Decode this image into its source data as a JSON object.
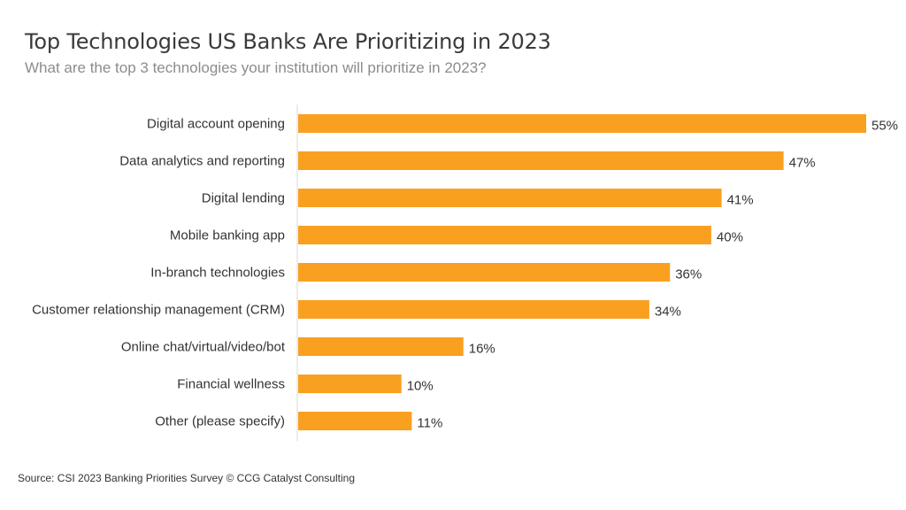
{
  "title": "Top Technologies US Banks Are Prioritizing in 2023",
  "subtitle": "What are the top 3 technologies your institution will prioritize in 2023?",
  "source": "Source: CSI 2023 Banking Priorities Survey © CCG Catalyst Consulting",
  "colors": {
    "bar": "#FAA021",
    "axis": "#D9D9D9"
  },
  "chart_data": {
    "type": "bar",
    "orientation": "horizontal",
    "categories": [
      "Digital account opening",
      "Data analytics and reporting",
      "Digital lending",
      "Mobile banking app",
      "In-branch technologies",
      "Customer relationship management (CRM)",
      "Online chat/virtual/video/bot",
      "Financial wellness",
      "Other (please specify)"
    ],
    "values": [
      55,
      47,
      41,
      40,
      36,
      34,
      16,
      10,
      11
    ],
    "data_labels": [
      "55%",
      "47%",
      "41%",
      "40%",
      "36%",
      "34%",
      "16%",
      "10%",
      "11%"
    ],
    "unit": "%",
    "xlim": [
      0,
      55
    ],
    "grid": false,
    "legend": "none"
  }
}
